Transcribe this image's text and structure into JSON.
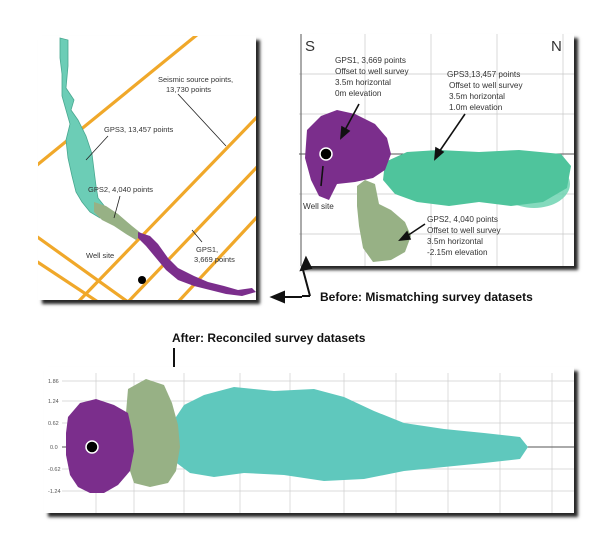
{
  "map_panel": {
    "seismic_label": [
      "Seismic source points,",
      "13,730 points"
    ],
    "gps3_label": "GPS3, 13,457 points",
    "gps2_label": "GPS2, 4,040 points",
    "gps1_label": [
      "GPS1,",
      "3,669 points"
    ],
    "well_label": "Well site"
  },
  "before_panel": {
    "south_label": "S",
    "north_label": "N",
    "gps1_note": [
      "GPS1, 3,669 points",
      "Offset to well survey",
      "3.5m horizontal",
      "0m elevation"
    ],
    "gps3_note": [
      "GPS3,13,457 points",
      "Offset to well survey",
      "3.5m horizontal",
      "1.0m elevation"
    ],
    "gps2_note": [
      "GPS2, 4,040 points",
      "Offset to well survey",
      "3.5m horizontal",
      "-2.15m elevation"
    ],
    "well_label": "Well site"
  },
  "before_caption": "Before: Mismatching survey datasets",
  "after_caption": "After: Reconciled survey datasets",
  "after_panel": {
    "y_ticks": [
      "1.86",
      "1.24",
      "0.62",
      "0.0",
      "-0.62",
      "-1.24"
    ]
  },
  "colors": {
    "gps1": "#7b2e8c",
    "gps2": "#97b185",
    "gps3": "#5ccaa4",
    "gps3_after": "#5fc8bd",
    "seismic": "#f0a82a",
    "outline": "#6a6a6a"
  }
}
